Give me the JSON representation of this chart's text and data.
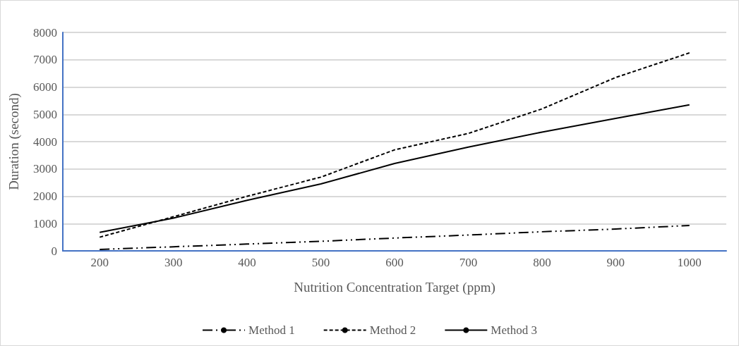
{
  "chart_data": {
    "type": "line",
    "xlabel": "Nutrition Concentration Target (ppm)",
    "ylabel": "Duration (second)",
    "categories": [
      "200",
      "300",
      "400",
      "500",
      "600",
      "700",
      "800",
      "900",
      "1000"
    ],
    "series": [
      {
        "name": "Method 1",
        "color": "#000000",
        "line_style": "dotted",
        "values": [
          50,
          150,
          250,
          350,
          470,
          580,
          700,
          800,
          930
        ]
      },
      {
        "name": "Method 2",
        "color": "#000000",
        "line_style": "dashed",
        "values": [
          500,
          1250,
          2000,
          2700,
          3700,
          4300,
          5200,
          6350,
          7250
        ]
      },
      {
        "name": "Method 3",
        "color": "#000000",
        "line_style": "solid",
        "values": [
          680,
          1200,
          1850,
          2450,
          3200,
          3800,
          4350,
          4850,
          5350
        ]
      }
    ],
    "ylim": [
      0,
      8000
    ],
    "yticks": [
      0,
      1000,
      2000,
      3000,
      4000,
      5000,
      6000,
      7000,
      8000
    ],
    "grid": "y",
    "legend": "bottom",
    "marker": "none"
  }
}
